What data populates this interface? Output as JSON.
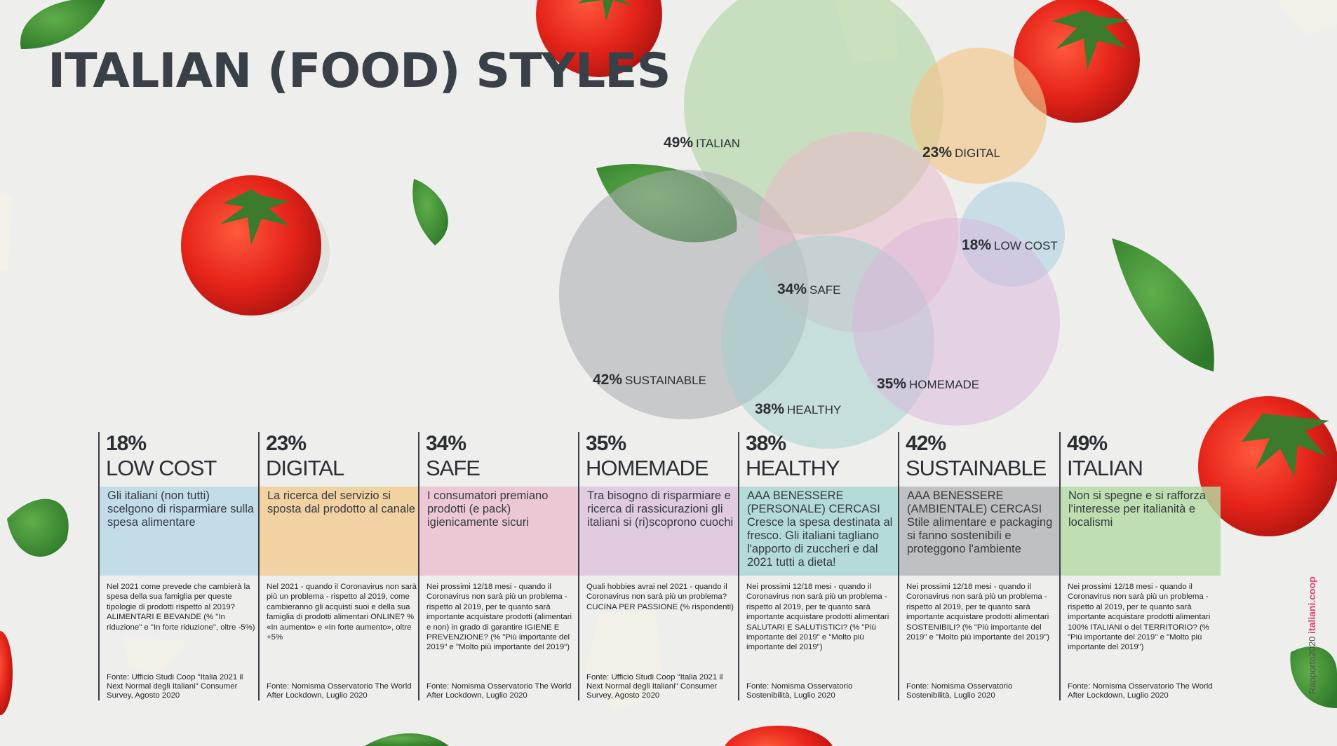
{
  "title": "ITALIAN (FOOD) STYLES",
  "venn": [
    {
      "key": "italian",
      "pct": "49%",
      "label": "ITALIAN",
      "color": "#a9d49a"
    },
    {
      "key": "digital",
      "pct": "23%",
      "label": "DIGITAL",
      "color": "#f2c58a"
    },
    {
      "key": "lowcost",
      "pct": "18%",
      "label": "LOW COST",
      "color": "#a9cfe1"
    },
    {
      "key": "safe",
      "pct": "34%",
      "label": "SAFE",
      "color": "#eab6c8"
    },
    {
      "key": "sustainable",
      "pct": "42%",
      "label": "SUSTAINABLE",
      "color": "#a9acb0"
    },
    {
      "key": "healthy",
      "pct": "38%",
      "label": "HEALTHY",
      "color": "#9fd0cb"
    },
    {
      "key": "homemade",
      "pct": "35%",
      "label": "HOMEMADE",
      "color": "#d9b6db"
    }
  ],
  "columns": [
    {
      "pct": "18%",
      "name": "LOW COST",
      "color": "#b9d9e7",
      "lead": "Gli italiani (non tutti) scelgono di risparmiare sulla spesa alimentare",
      "body": "Nel 2021 come prevede che cambierà la spesa della sua famiglia per queste tipologie di prodotti rispetto al 2019? ALIMENTARI E BEVANDE (% \"In riduzione\" e \"In forte riduzione\", oltre -5%)",
      "source": "Fonte: Ufficio Studi Coop \"Italia 2021 il Next Normal degli Italiani\" Consumer Survey, Agosto 2020"
    },
    {
      "pct": "23%",
      "name": "DIGITAL",
      "color": "#f3cb93",
      "lead": "La ricerca del servizio si sposta dal prodotto al canale",
      "body": "Nel 2021 - quando il Coronavirus non sarà più un problema - rispetto al 2019, come cambieranno gli acquisti suoi e della sua famiglia di prodotti alimentari ONLINE? % «In aumento» e «In forte aumento», oltre +5%",
      "source": "Fonte: Nomisma Osservatorio The World After Lockdown, Luglio 2020"
    },
    {
      "pct": "34%",
      "name": "SAFE",
      "color": "#ecbfcf",
      "lead": "I consumatori premiano prodotti (e pack) igienicamente sicuri",
      "body": "Nei prossimi 12/18 mesi - quando il Coronavirus non sarà più un problema - rispetto al 2019, per te quanto sarà importante acquistare prodotti (alimentari e non) in grado di garantire IGIENE E PREVENZIONE? (% \"Più importante del 2019\" e \"Molto più importante del 2019\")",
      "source": "Fonte: Nomisma Osservatorio The World After Lockdown, Luglio 2020"
    },
    {
      "pct": "35%",
      "name": "HOMEMADE",
      "color": "#ddc3de",
      "lead": "Tra bisogno di risparmiare e ricerca di rassicurazioni gli italiani si (ri)scoprono cuochi",
      "body": "Quali hobbies avrai nel 2021 - quando il Coronavirus non sarà più un problema? CUCINA PER PASSIONE (% rispondenti)",
      "source": "Fonte: Ufficio Studi Coop \"Italia 2021 il Next Normal degli Italiani\" Consumer Survey, Agosto 2020"
    },
    {
      "pct": "38%",
      "name": "HEALTHY",
      "color": "#a7d7d2",
      "lead": "AAA BENESSERE (PERSONALE) CERCASI Cresce la spesa destinata al fresco. Gli italiani tagliano l'apporto di zuccheri e dal 2021 tutti a dieta!",
      "body": "Nei prossimi 12/18 mesi - quando il Coronavirus non sarà più un problema - rispetto al 2019, per te quanto sarà importante acquistare prodotti alimentari SALUTARI E SALUTISTICI? (% \"Più importante del 2019\" e \"Molto più importante del 2019\")",
      "source": "Fonte: Nomisma Osservatorio Sostenibilità, Luglio 2020"
    },
    {
      "pct": "42%",
      "name": "SUSTAINABLE",
      "color": "#b4b6b9",
      "lead": "AAA BENESSERE (AMBIENTALE) CERCASI Stile alimentare e packaging si fanno sostenibili e proteggono l'ambiente",
      "body": "Nei prossimi 12/18 mesi - quando il Coronavirus non sarà più un problema - rispetto al 2019, per te quanto sarà importante acquistare prodotti alimentari SOSTENIBILI? (% \"Più importante del 2019\" e \"Molto più importante del 2019\")",
      "source": "Fonte: Nomisma Osservatorio Sostenibilità, Luglio 2020"
    },
    {
      "pct": "49%",
      "name": "ITALIAN",
      "color": "#b4daa3",
      "lead": "Non si spegne e si rafforza l'interesse per italianità e localismi",
      "body": "Nei prossimi 12/18 mesi - quando il Coronavirus non sarà più un problema - rispetto al 2019, per te quanto sarà importante acquistare prodotti alimentari 100% ITALIANI o del TERRITORIO? (% \"Più importante del 2019\" e \"Molto più importante del 2019\")",
      "source": "Fonte: Nomisma Osservatorio The World After Lockdown, Luglio 2020"
    }
  ],
  "side": {
    "credit": "Rapporto2020",
    "brand": "italiani.coop"
  }
}
